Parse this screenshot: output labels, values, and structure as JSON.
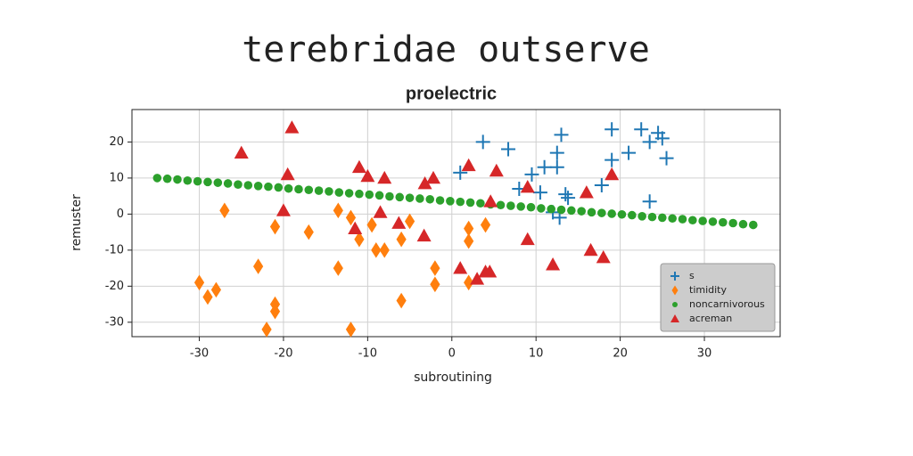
{
  "chart_data": {
    "type": "scatter",
    "title": "terebridae outserve",
    "subtitle": "proelectric",
    "x_label": "subroutining",
    "y_label": "remuster",
    "xlim": [
      -38,
      39
    ],
    "ylim": [
      -34,
      29
    ],
    "xticks": [
      -30,
      -20,
      -10,
      0,
      10,
      20,
      30
    ],
    "yticks": [
      -30,
      -20,
      -10,
      0,
      10,
      20
    ],
    "grid": true,
    "legend": "lower right",
    "series": [
      {
        "name": "s",
        "color": "#1f77b4",
        "marker": "plus",
        "x": [
          3.7,
          1,
          6.7,
          8,
          9.5,
          11,
          12.5,
          12.5,
          13,
          10.5,
          13.5,
          13.8,
          12,
          12.8,
          17.8,
          19,
          19,
          21,
          22.5,
          23.5,
          24.5,
          25,
          25.5,
          23.5
        ],
        "values": [
          20,
          11.5,
          18,
          7,
          11,
          13,
          13,
          17,
          22,
          6,
          5.5,
          4.5,
          0.5,
          -1,
          8,
          15,
          23.5,
          17,
          23.5,
          20,
          22.5,
          21,
          15.5,
          3.5
        ]
      },
      {
        "name": "timidity",
        "color": "#ff7f0e",
        "marker": "diamond",
        "x": [
          -27,
          -30,
          -29,
          -28,
          -23,
          -22,
          -21,
          -21,
          -21,
          -17,
          -13.5,
          -13.5,
          -12,
          -12,
          -11,
          -9.5,
          -9,
          -8,
          -6,
          -6,
          -5,
          -2,
          -2,
          2,
          2,
          2,
          4
        ],
        "values": [
          1,
          -19,
          -23,
          -21,
          -14.5,
          -32,
          -25,
          -27,
          -3.5,
          -5,
          1,
          -15,
          -1,
          -32,
          -7,
          -3,
          -10,
          -10,
          -7,
          -24,
          -2,
          -15,
          -19.5,
          -4,
          -7.5,
          -19,
          -3
        ]
      },
      {
        "name": "noncarnivorous",
        "color": "#2ca02c",
        "marker": "circle",
        "x": [
          -35,
          -33.8,
          -32.6,
          -31.4,
          -30.2,
          -29,
          -27.8,
          -26.6,
          -25.4,
          -24.2,
          -23,
          -21.8,
          -20.6,
          -19.4,
          -18.2,
          -17,
          -15.8,
          -14.6,
          -13.4,
          -12.2,
          -11,
          -9.8,
          -8.6,
          -7.4,
          -6.2,
          -5,
          -3.8,
          -2.6,
          -1.4,
          -0.2,
          1,
          2.2,
          3.4,
          4.6,
          5.8,
          7,
          8.2,
          9.4,
          10.6,
          11.8,
          13,
          14.2,
          15.4,
          16.6,
          17.8,
          19,
          20.2,
          21.4,
          22.6,
          23.8,
          25,
          26.2,
          27.4,
          28.6,
          29.8,
          31,
          32.2,
          33.4,
          34.6,
          35.8
        ],
        "values": [
          10,
          9.8,
          9.6,
          9.3,
          9.1,
          8.9,
          8.7,
          8.5,
          8.2,
          8,
          7.8,
          7.6,
          7.4,
          7.1,
          6.9,
          6.7,
          6.5,
          6.3,
          6,
          5.8,
          5.6,
          5.4,
          5.2,
          4.9,
          4.7,
          4.5,
          4.3,
          4.1,
          3.8,
          3.6,
          3.4,
          3.2,
          3,
          2.7,
          2.5,
          2.3,
          2.1,
          1.9,
          1.6,
          1.4,
          1.2,
          1,
          0.8,
          0.5,
          0.3,
          0.1,
          -0.1,
          -0.3,
          -0.6,
          -0.8,
          -1,
          -1.2,
          -1.4,
          -1.7,
          -1.9,
          -2.1,
          -2.3,
          -2.5,
          -2.8,
          -3
        ]
      },
      {
        "name": "acreman",
        "color": "#d62728",
        "marker": "triangle",
        "x": [
          -25,
          -19,
          -19.5,
          -20,
          -11,
          -10,
          -8,
          -11.5,
          -8.5,
          -6.3,
          -3.3,
          -3.2,
          -2.2,
          2,
          5.3,
          4.6,
          1,
          3,
          4,
          4.5,
          9,
          9,
          12,
          16,
          16.5,
          18,
          19
        ],
        "values": [
          17,
          24,
          11,
          1,
          13,
          10.5,
          10,
          -4,
          0.5,
          -2.5,
          -6,
          8.5,
          10,
          13.5,
          12,
          3.5,
          -15,
          -18,
          -16,
          -16,
          7.5,
          -7,
          -14,
          6,
          -10,
          -12,
          11
        ]
      }
    ]
  }
}
